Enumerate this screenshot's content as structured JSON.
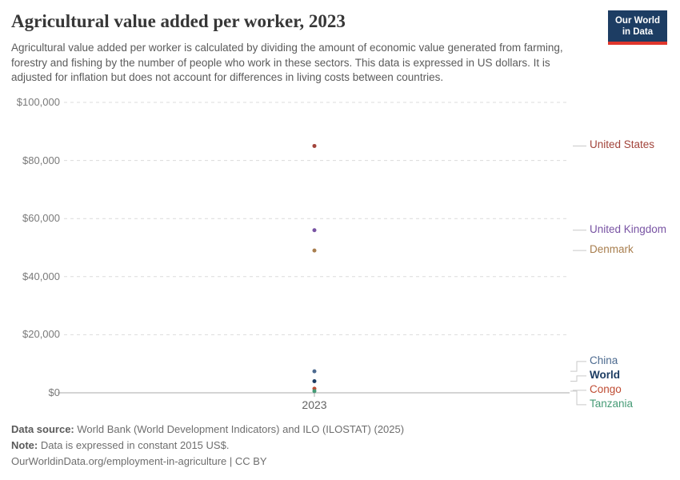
{
  "header": {
    "title": "Agricultural value added per worker, 2023",
    "subtitle": "Agricultural value added per worker is calculated by dividing the amount of economic value generated from farming, forestry and fishing by the number of people who work in these sectors. This data is expressed in US dollars. It is adjusted for inflation but does not account for differences in living costs between countries.",
    "logo": {
      "line1": "Our World",
      "line2": "in Data",
      "bg_color": "#1D3D63",
      "accent_color": "#E0362C"
    }
  },
  "chart_data": {
    "type": "scatter",
    "title": "Agricultural value added per worker, 2023",
    "x": [
      2023
    ],
    "x_tick_label": "2023",
    "xlabel": "",
    "ylabel": "",
    "ylim": [
      0,
      100000
    ],
    "grid": "horizontal-dashed",
    "legend_position": "right-entity-labels",
    "unit": "constant 2015 US$",
    "yticks": [
      {
        "value": 0,
        "label": "$0"
      },
      {
        "value": 20000,
        "label": "$20,000"
      },
      {
        "value": 40000,
        "label": "$40,000"
      },
      {
        "value": 60000,
        "label": "$60,000"
      },
      {
        "value": 80000,
        "label": "$80,000"
      },
      {
        "value": 100000,
        "label": "$100,000"
      }
    ],
    "series": [
      {
        "name": "United States",
        "value": 85000,
        "color": "#A2443B"
      },
      {
        "name": "United Kingdom",
        "value": 56000,
        "color": "#7853A3"
      },
      {
        "name": "Denmark",
        "value": 49000,
        "color": "#A87E4E"
      },
      {
        "name": "China",
        "value": 7400,
        "color": "#4C6A8F"
      },
      {
        "name": "World",
        "value": 4000,
        "color": "#1D3D63",
        "bold": true
      },
      {
        "name": "Congo",
        "value": 1400,
        "color": "#BF4B32"
      },
      {
        "name": "Tanzania",
        "value": 600,
        "color": "#469B76"
      }
    ]
  },
  "footer": {
    "datasource_label": "Data source:",
    "datasource_text": "World Bank (World Development Indicators) and ILO (ILOSTAT) (2025)",
    "note_label": "Note:",
    "note_text": "Data is expressed in constant 2015 US$.",
    "url": "OurWorldinData.org/employment-in-agriculture",
    "separator": " | ",
    "license": "CC BY"
  }
}
